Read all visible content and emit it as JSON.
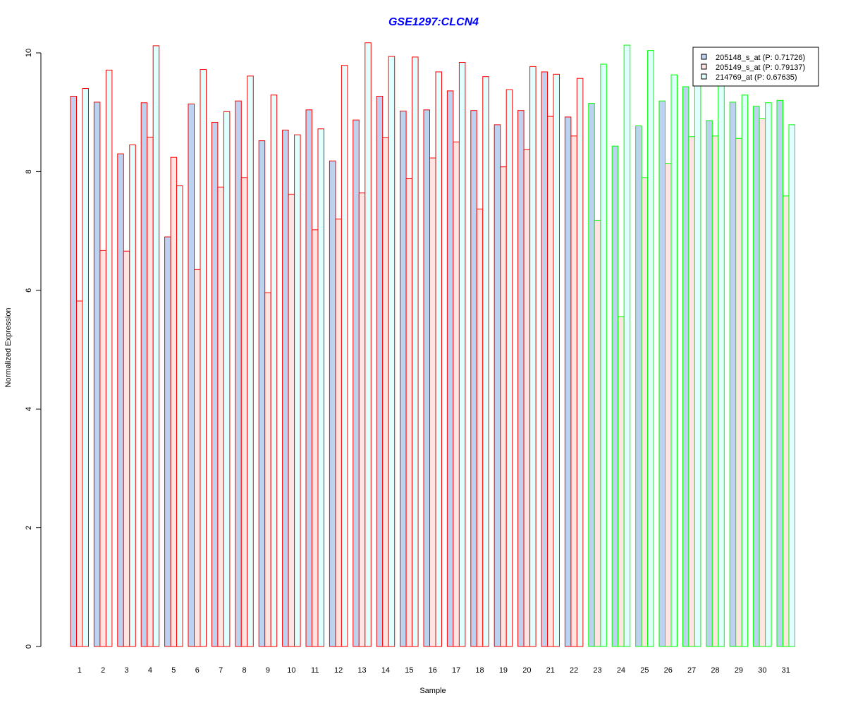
{
  "chart_data": {
    "type": "bar",
    "title": "GSE1297:CLCN4",
    "xlabel": "Sample",
    "ylabel": "Normalized Expression",
    "ylim": [
      0,
      10.2
    ],
    "yticks": [
      "0",
      "2",
      "4",
      "6",
      "8",
      "10"
    ],
    "grid": false,
    "legend_position": "top-right",
    "categories": [
      "1",
      "2",
      "3",
      "4",
      "5",
      "6",
      "7",
      "8",
      "9",
      "10",
      "11",
      "12",
      "13",
      "14",
      "15",
      "16",
      "17",
      "18",
      "19",
      "20",
      "21",
      "22",
      "23",
      "24",
      "25",
      "26",
      "27",
      "28",
      "29",
      "30",
      "31"
    ],
    "series": [
      {
        "name": "205148_s_at (P: 0.71726)",
        "values": [
          9.27,
          9.17,
          8.3,
          9.16,
          6.9,
          9.14,
          8.83,
          9.19,
          8.52,
          8.7,
          9.04,
          8.18,
          8.87,
          9.27,
          9.02,
          9.04,
          9.36,
          9.03,
          8.79,
          9.03,
          9.68,
          8.92,
          9.15,
          8.43,
          8.77,
          9.19,
          9.43,
          8.86,
          9.17,
          9.1,
          9.2
        ]
      },
      {
        "name": "205149_s_at (P: 0.79137)",
        "values": [
          5.82,
          6.67,
          6.66,
          8.58,
          8.24,
          6.35,
          7.74,
          7.9,
          5.96,
          7.62,
          7.02,
          7.2,
          7.64,
          8.57,
          7.88,
          8.23,
          8.5,
          7.37,
          8.08,
          8.37,
          8.93,
          8.6,
          7.18,
          5.56,
          7.9,
          8.14,
          8.59,
          8.6,
          8.56,
          8.89,
          7.59
        ]
      },
      {
        "name": "214769_at (P: 0.67635)",
        "values": [
          9.4,
          9.71,
          8.45,
          10.12,
          7.76,
          9.72,
          9.01,
          9.61,
          9.29,
          8.62,
          8.72,
          9.79,
          10.17,
          9.94,
          9.93,
          9.68,
          9.84,
          9.6,
          9.38,
          9.77,
          9.64,
          9.57,
          9.81,
          10.13,
          10.04,
          9.63,
          9.72,
          9.67,
          9.29,
          9.16,
          8.79
        ]
      }
    ],
    "series_fill_colors": [
      "#bcd2ee",
      "#ffe4e1",
      "#e0ffff"
    ],
    "group_border_colors": [
      "#ff0000",
      "#00ff00"
    ],
    "group_split_after_sample": 22,
    "colors": {
      "title": "#0000ff",
      "axis": "#000000",
      "background": "#ffffff"
    }
  }
}
